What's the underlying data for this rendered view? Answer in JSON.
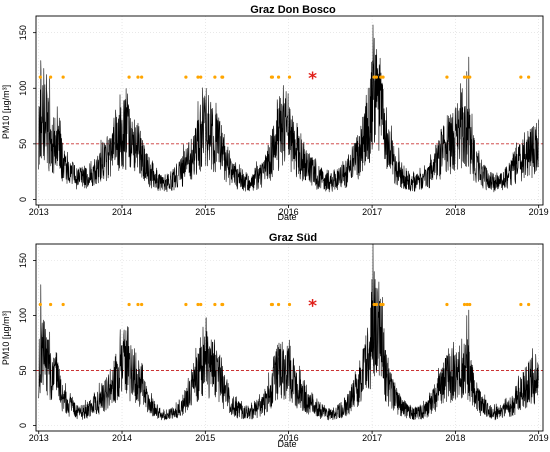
{
  "chart_data": [
    {
      "type": "line",
      "title": "Graz Don Bosco",
      "xlabel": "Date",
      "ylabel": "PM10 [µg/m³]",
      "xlim": [
        "2012-12-20",
        "2019-01-20"
      ],
      "ylim": [
        -5,
        165
      ],
      "x_ticks": [
        "2013",
        "2014",
        "2015",
        "2016",
        "2017",
        "2018",
        "2019"
      ],
      "y_ticks": [
        0,
        50,
        100,
        150
      ],
      "grid": true,
      "colors": {
        "series": "#000000",
        "threshold": "#cc3333",
        "episodes": "#ffa500",
        "marker": "#e0201a",
        "grid": "#d9d9d9"
      },
      "threshold_line": {
        "y": 50,
        "style": "dashed"
      },
      "series_profile": [
        [
          "2013-01-01",
          60
        ],
        [
          "2013-01-20",
          75
        ],
        [
          "2013-02-10",
          60
        ],
        [
          "2013-03-01",
          45
        ],
        [
          "2013-03-20",
          55
        ],
        [
          "2013-04-15",
          35
        ],
        [
          "2013-05-15",
          25
        ],
        [
          "2013-06-15",
          18
        ],
        [
          "2013-07-15",
          20
        ],
        [
          "2013-08-15",
          22
        ],
        [
          "2013-09-15",
          25
        ],
        [
          "2013-10-15",
          35
        ],
        [
          "2013-11-15",
          40
        ],
        [
          "2013-12-15",
          50
        ],
        [
          "2014-01-10",
          60
        ],
        [
          "2014-02-01",
          55
        ],
        [
          "2014-03-01",
          50
        ],
        [
          "2014-03-25",
          40
        ],
        [
          "2014-04-20",
          28
        ],
        [
          "2014-05-20",
          20
        ],
        [
          "2014-06-20",
          15
        ],
        [
          "2014-07-20",
          15
        ],
        [
          "2014-08-20",
          18
        ],
        [
          "2014-09-20",
          25
        ],
        [
          "2014-10-20",
          35
        ],
        [
          "2014-11-20",
          45
        ],
        [
          "2014-12-15",
          55
        ],
        [
          "2015-01-05",
          65
        ],
        [
          "2015-02-01",
          55
        ],
        [
          "2015-03-01",
          50
        ],
        [
          "2015-03-25",
          38
        ],
        [
          "2015-04-20",
          28
        ],
        [
          "2015-05-20",
          20
        ],
        [
          "2015-06-20",
          16
        ],
        [
          "2015-07-20",
          16
        ],
        [
          "2015-08-20",
          20
        ],
        [
          "2015-09-20",
          25
        ],
        [
          "2015-10-20",
          40
        ],
        [
          "2015-11-15",
          55
        ],
        [
          "2015-12-15",
          60
        ],
        [
          "2016-01-10",
          55
        ],
        [
          "2016-02-01",
          40
        ],
        [
          "2016-03-01",
          35
        ],
        [
          "2016-04-01",
          28
        ],
        [
          "2016-05-01",
          20
        ],
        [
          "2016-06-01",
          16
        ],
        [
          "2016-07-01",
          15
        ],
        [
          "2016-08-01",
          17
        ],
        [
          "2016-09-01",
          22
        ],
        [
          "2016-10-01",
          30
        ],
        [
          "2016-11-01",
          40
        ],
        [
          "2016-12-01",
          55
        ],
        [
          "2017-01-05",
          85
        ],
        [
          "2017-01-20",
          95
        ],
        [
          "2017-02-10",
          80
        ],
        [
          "2017-03-01",
          50
        ],
        [
          "2017-03-25",
          38
        ],
        [
          "2017-04-20",
          28
        ],
        [
          "2017-05-20",
          20
        ],
        [
          "2017-06-20",
          16
        ],
        [
          "2017-07-20",
          15
        ],
        [
          "2017-08-20",
          18
        ],
        [
          "2017-09-20",
          25
        ],
        [
          "2017-10-20",
          38
        ],
        [
          "2017-11-15",
          45
        ],
        [
          "2017-12-15",
          50
        ],
        [
          "2018-01-10",
          55
        ],
        [
          "2018-02-01",
          60
        ],
        [
          "2018-03-01",
          55
        ],
        [
          "2018-03-25",
          35
        ],
        [
          "2018-04-20",
          25
        ],
        [
          "2018-05-20",
          18
        ],
        [
          "2018-06-20",
          15
        ],
        [
          "2018-07-20",
          16
        ],
        [
          "2018-08-20",
          20
        ],
        [
          "2018-09-20",
          28
        ],
        [
          "2018-10-20",
          35
        ],
        [
          "2018-11-20",
          42
        ],
        [
          "2018-12-20",
          45
        ]
      ],
      "series_peaks": [
        [
          "2013-01-10",
          125
        ],
        [
          "2013-02-18",
          110
        ],
        [
          "2013-12-05",
          75
        ],
        [
          "2014-01-25",
          95
        ],
        [
          "2014-12-10",
          85
        ],
        [
          "2015-01-05",
          100
        ],
        [
          "2015-11-20",
          82
        ],
        [
          "2016-01-01",
          60
        ],
        [
          "2017-01-05",
          157
        ],
        [
          "2017-01-10",
          145
        ],
        [
          "2017-01-18",
          130
        ],
        [
          "2017-02-02",
          120
        ],
        [
          "2017-12-01",
          75
        ],
        [
          "2018-02-20",
          115
        ],
        [
          "2018-03-01",
          128
        ],
        [
          "2018-12-05",
          65
        ]
      ],
      "episodes": {
        "y": 110,
        "dates": [
          "2013-01-08",
          "2013-02-22",
          "2013-04-18",
          "2014-02-01",
          "2014-03-12",
          "2014-03-28",
          "2014-10-08",
          "2014-11-30",
          "2014-12-12",
          "2015-02-12",
          "2015-03-15",
          "2015-03-18",
          "2015-10-18",
          "2015-10-22",
          "2015-11-18",
          "2016-01-05",
          "2017-01-10",
          "2017-01-20",
          "2017-02-08",
          "2017-02-18",
          "2017-11-25",
          "2018-02-10",
          "2018-02-22",
          "2018-03-05",
          "2018-10-15",
          "2018-11-18"
        ]
      },
      "marker": {
        "date": "2016-04-15",
        "y": 110
      }
    },
    {
      "type": "line",
      "title": "Graz Süd",
      "xlabel": "Date",
      "ylabel": "PM10 [µg/m³]",
      "xlim": [
        "2012-12-20",
        "2019-01-20"
      ],
      "ylim": [
        -5,
        165
      ],
      "x_ticks": [
        "2013",
        "2014",
        "2015",
        "2016",
        "2017",
        "2018",
        "2019"
      ],
      "y_ticks": [
        0,
        50,
        100,
        150
      ],
      "grid": true,
      "colors": {
        "series": "#000000",
        "threshold": "#cc3333",
        "episodes": "#ffa500",
        "marker": "#e0201a",
        "grid": "#d9d9d9"
      },
      "threshold_line": {
        "y": 50,
        "style": "dashed"
      },
      "series_profile": [
        [
          "2013-01-01",
          55
        ],
        [
          "2013-01-20",
          65
        ],
        [
          "2013-02-10",
          55
        ],
        [
          "2013-03-01",
          40
        ],
        [
          "2013-03-20",
          45
        ],
        [
          "2013-04-15",
          25
        ],
        [
          "2013-05-15",
          18
        ],
        [
          "2013-06-15",
          12
        ],
        [
          "2013-07-15",
          12
        ],
        [
          "2013-08-15",
          15
        ],
        [
          "2013-09-15",
          20
        ],
        [
          "2013-10-15",
          28
        ],
        [
          "2013-11-15",
          35
        ],
        [
          "2013-12-15",
          45
        ],
        [
          "2014-01-10",
          55
        ],
        [
          "2014-02-01",
          50
        ],
        [
          "2014-03-01",
          45
        ],
        [
          "2014-03-25",
          35
        ],
        [
          "2014-04-20",
          22
        ],
        [
          "2014-05-20",
          15
        ],
        [
          "2014-06-20",
          10
        ],
        [
          "2014-07-20",
          10
        ],
        [
          "2014-08-20",
          12
        ],
        [
          "2014-09-20",
          18
        ],
        [
          "2014-10-20",
          28
        ],
        [
          "2014-11-20",
          40
        ],
        [
          "2014-12-15",
          50
        ],
        [
          "2015-01-05",
          58
        ],
        [
          "2015-02-01",
          50
        ],
        [
          "2015-03-01",
          42
        ],
        [
          "2015-03-25",
          32
        ],
        [
          "2015-04-20",
          22
        ],
        [
          "2015-05-20",
          15
        ],
        [
          "2015-06-20",
          12
        ],
        [
          "2015-07-20",
          12
        ],
        [
          "2015-08-20",
          15
        ],
        [
          "2015-09-20",
          20
        ],
        [
          "2015-10-20",
          33
        ],
        [
          "2015-11-15",
          48
        ],
        [
          "2015-12-15",
          52
        ],
        [
          "2016-01-10",
          48
        ],
        [
          "2016-02-01",
          35
        ],
        [
          "2016-03-01",
          28
        ],
        [
          "2016-04-01",
          22
        ],
        [
          "2016-05-01",
          15
        ],
        [
          "2016-06-01",
          12
        ],
        [
          "2016-07-01",
          10
        ],
        [
          "2016-08-01",
          12
        ],
        [
          "2016-09-01",
          16
        ],
        [
          "2016-10-01",
          24
        ],
        [
          "2016-11-01",
          35
        ],
        [
          "2016-12-01",
          50
        ],
        [
          "2017-01-05",
          80
        ],
        [
          "2017-01-20",
          90
        ],
        [
          "2017-02-10",
          75
        ],
        [
          "2017-03-01",
          45
        ],
        [
          "2017-03-25",
          32
        ],
        [
          "2017-04-20",
          22
        ],
        [
          "2017-05-20",
          15
        ],
        [
          "2017-06-20",
          12
        ],
        [
          "2017-07-20",
          11
        ],
        [
          "2017-08-20",
          13
        ],
        [
          "2017-09-20",
          20
        ],
        [
          "2017-10-20",
          32
        ],
        [
          "2017-11-15",
          40
        ],
        [
          "2017-12-15",
          45
        ],
        [
          "2018-01-10",
          50
        ],
        [
          "2018-02-01",
          55
        ],
        [
          "2018-03-01",
          50
        ],
        [
          "2018-03-25",
          30
        ],
        [
          "2018-04-20",
          20
        ],
        [
          "2018-05-20",
          14
        ],
        [
          "2018-06-20",
          11
        ],
        [
          "2018-07-20",
          12
        ],
        [
          "2018-08-20",
          15
        ],
        [
          "2018-09-20",
          22
        ],
        [
          "2018-10-20",
          30
        ],
        [
          "2018-11-20",
          38
        ],
        [
          "2018-12-20",
          42
        ]
      ],
      "series_peaks": [
        [
          "2013-01-10",
          128
        ],
        [
          "2013-02-18",
          85
        ],
        [
          "2013-12-05",
          65
        ],
        [
          "2014-01-25",
          90
        ],
        [
          "2014-12-10",
          80
        ],
        [
          "2015-01-05",
          98
        ],
        [
          "2015-11-20",
          75
        ],
        [
          "2016-01-01",
          55
        ],
        [
          "2017-01-05",
          165
        ],
        [
          "2017-01-10",
          140
        ],
        [
          "2017-01-18",
          125
        ],
        [
          "2017-02-02",
          110
        ],
        [
          "2017-12-01",
          70
        ],
        [
          "2018-02-20",
          100
        ],
        [
          "2018-03-01",
          105
        ],
        [
          "2018-12-05",
          70
        ]
      ],
      "episodes": {
        "y": 110,
        "dates": [
          "2013-01-08",
          "2013-02-22",
          "2013-04-18",
          "2014-02-01",
          "2014-03-12",
          "2014-03-28",
          "2014-10-08",
          "2014-11-30",
          "2014-12-12",
          "2015-02-12",
          "2015-03-15",
          "2015-03-18",
          "2015-10-18",
          "2015-10-22",
          "2015-11-18",
          "2016-01-05",
          "2017-01-10",
          "2017-01-20",
          "2017-02-08",
          "2017-02-18",
          "2017-11-25",
          "2018-02-10",
          "2018-02-22",
          "2018-03-05",
          "2018-10-15",
          "2018-11-18"
        ]
      },
      "marker": {
        "date": "2016-04-15",
        "y": 110
      }
    }
  ]
}
